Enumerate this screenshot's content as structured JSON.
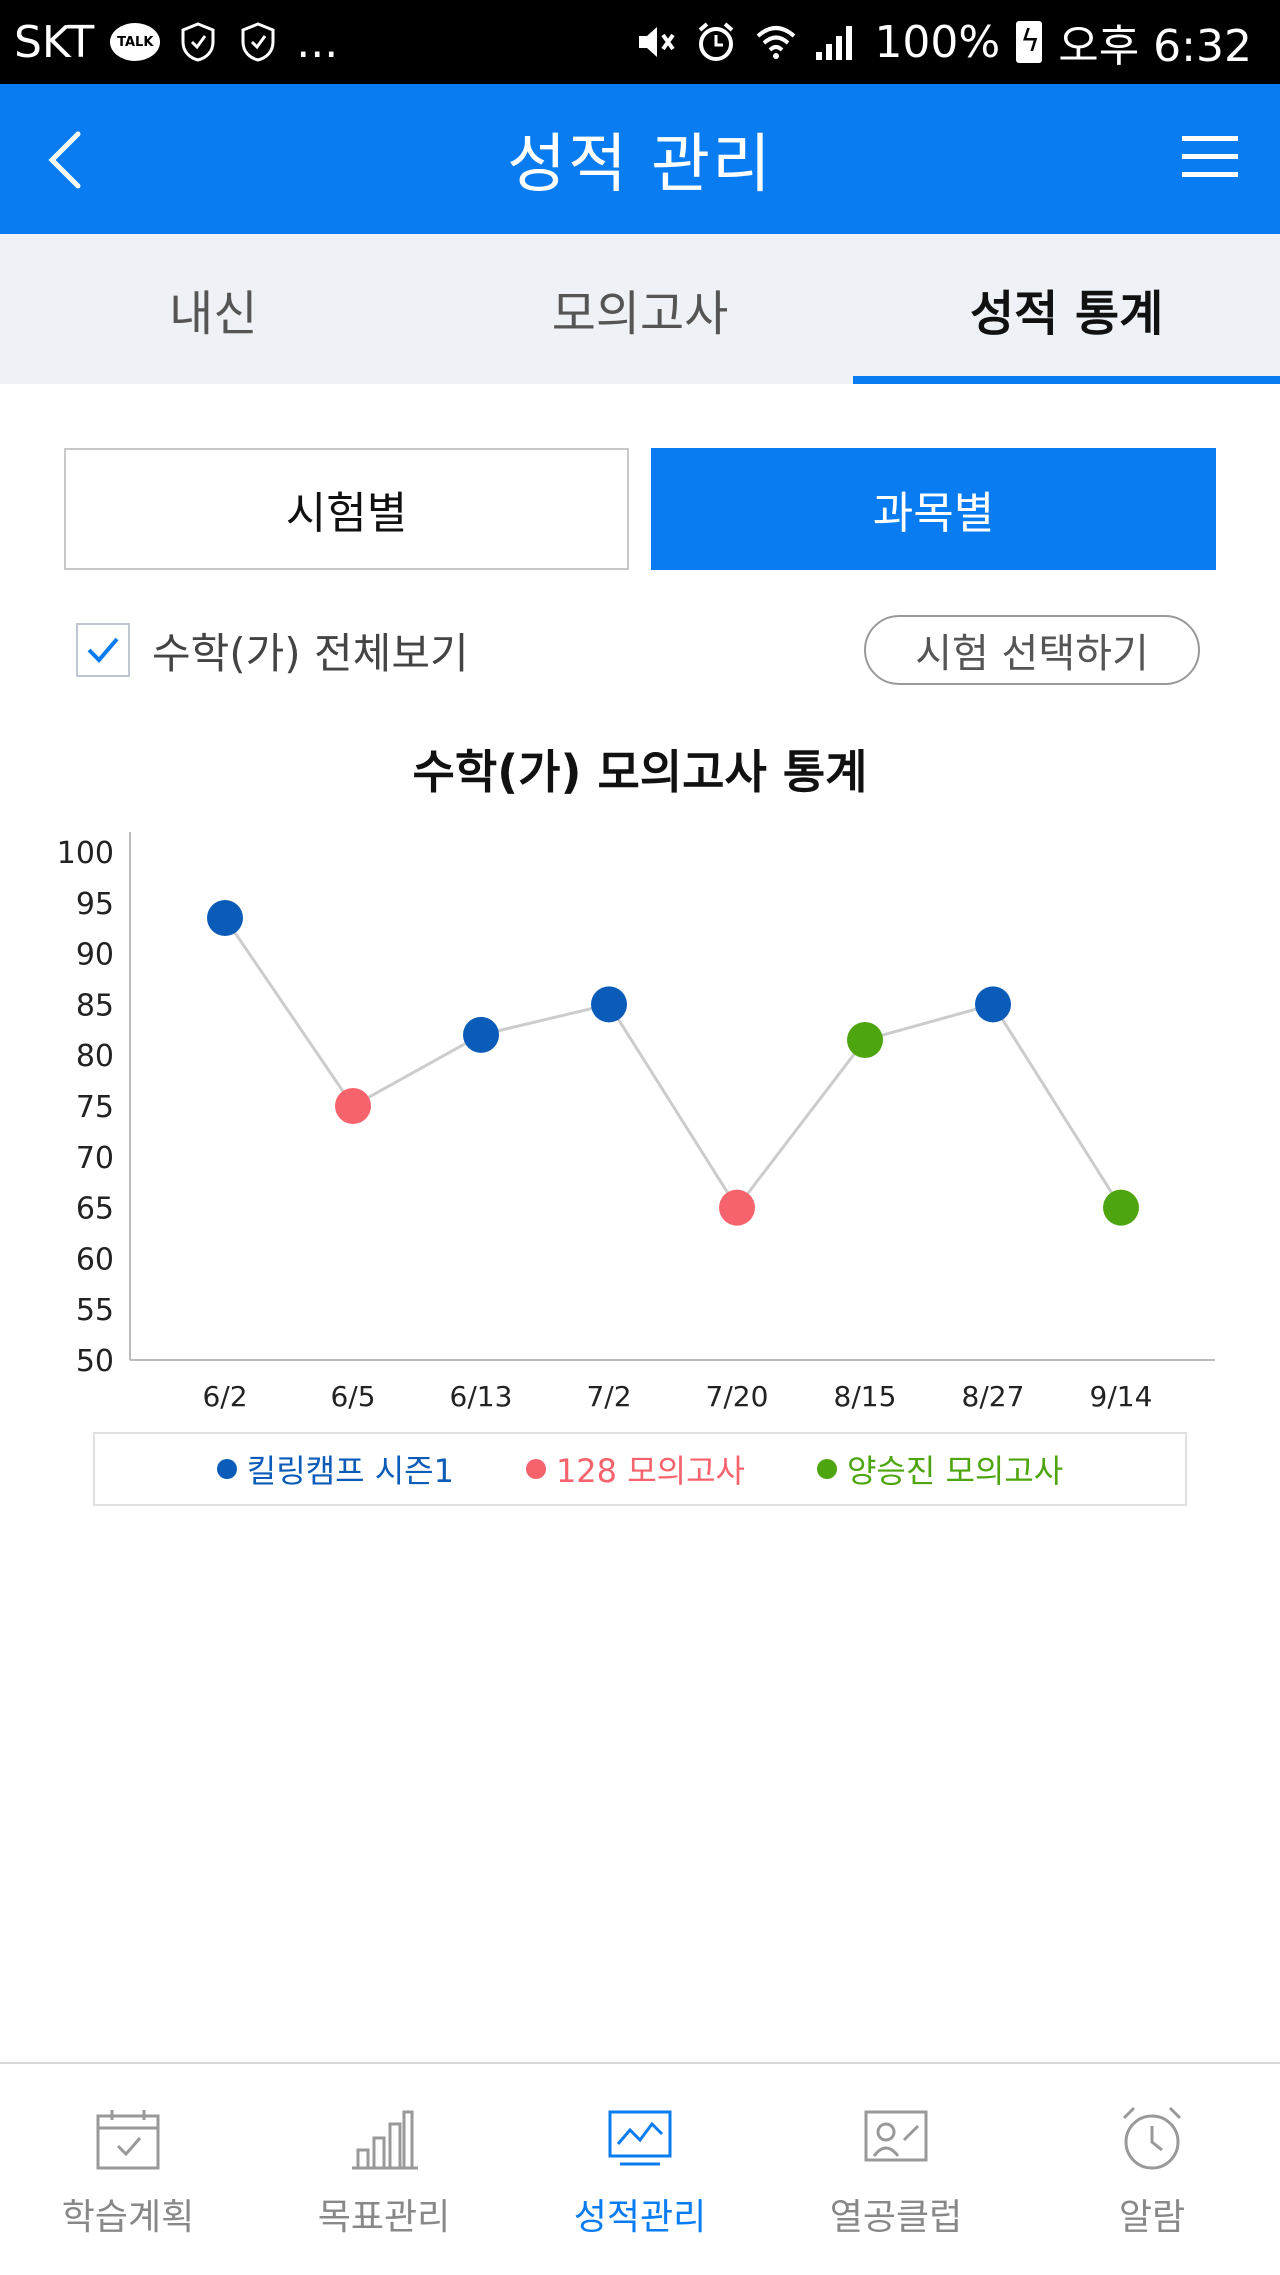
{
  "status_bar": {
    "carrier": "SKT",
    "talk_badge": "TALK",
    "more": "...",
    "battery": "100%",
    "time": "오후 6:32"
  },
  "header": {
    "title": "성적 관리",
    "back_icon": "chevron-left-icon",
    "menu_icon": "hamburger-menu-icon"
  },
  "tabs": [
    {
      "label": "내신",
      "active": false
    },
    {
      "label": "모의고사",
      "active": false
    },
    {
      "label": "성적 통계",
      "active": true
    }
  ],
  "segments": {
    "by_exam": "시험별",
    "by_subject": "과목별"
  },
  "options": {
    "view_all_label": "수학(가) 전체보기",
    "view_all_checked": true,
    "select_exam": "시험 선택하기"
  },
  "colors": {
    "accent": "#0a7cf2",
    "series_blue": "#0b5cb8",
    "series_red": "#f7636d",
    "series_green": "#4ea50f",
    "line": "#cccccc"
  },
  "chart_data": {
    "type": "line",
    "title": "수학(가) 모의고사 통계",
    "xlabel": "",
    "ylabel": "",
    "ylim": [
      50,
      100
    ],
    "yticks": [
      50,
      55,
      60,
      65,
      70,
      75,
      80,
      85,
      90,
      95,
      100
    ],
    "categories": [
      "6/2",
      "6/5",
      "6/13",
      "7/2",
      "7/20",
      "8/15",
      "8/27",
      "9/14"
    ],
    "values": [
      93.5,
      75,
      82,
      85,
      65,
      81.5,
      85,
      65
    ],
    "point_series": [
      0,
      1,
      0,
      0,
      1,
      2,
      0,
      2
    ],
    "series": [
      {
        "name": "킬링캠프 시즌1",
        "color": "#0b5cb8"
      },
      {
        "name": "128 모의고사",
        "color": "#f7636d"
      },
      {
        "name": "양승진 모의고사",
        "color": "#4ea50f"
      }
    ],
    "grid": false,
    "legend_position": "bottom"
  },
  "bottom_nav": [
    {
      "label": "학습계획",
      "icon": "calendar-icon",
      "active": false
    },
    {
      "label": "목표관리",
      "icon": "bar-chart-icon",
      "active": false
    },
    {
      "label": "성적관리",
      "icon": "line-chart-monitor-icon",
      "active": true
    },
    {
      "label": "열공클럽",
      "icon": "club-board-icon",
      "active": false
    },
    {
      "label": "알람",
      "icon": "alarm-clock-icon",
      "active": false
    }
  ]
}
